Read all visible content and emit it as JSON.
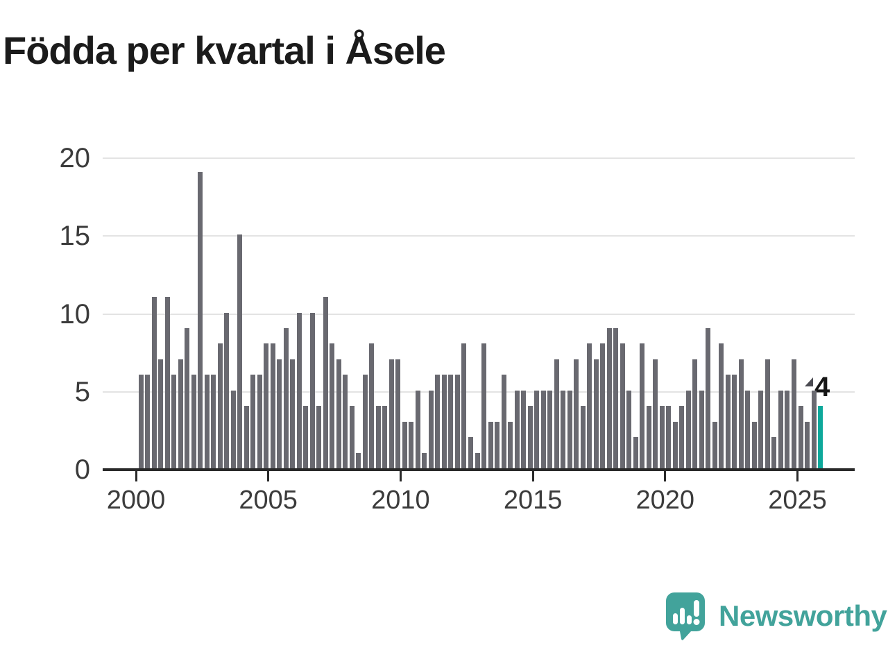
{
  "page": {
    "title": "Födda per kvartal i Åsele"
  },
  "annotation": {
    "latest_value_label": "4"
  },
  "branding": {
    "logo_text": "Newsworthy"
  },
  "colors": {
    "background": "#ffffff",
    "bar": "#696970",
    "highlight_bar": "#0da89b",
    "gridline": "#e3e3e3",
    "axis": "#2a2a2a",
    "tick_label": "#3b3b3b",
    "title_text": "#1b1b1b",
    "annotation_text": "#161616",
    "annotation_marker": "#4b4b52",
    "logo_teal": "#42a39b"
  },
  "chart_data": {
    "type": "bar",
    "title": "Födda per kvartal i Åsele",
    "x_unit": "quarter",
    "x_start": "2000-Q1",
    "x_end": "2025-Q4",
    "values": [
      6,
      6,
      11,
      7,
      11,
      6,
      7,
      9,
      6,
      19,
      6,
      6,
      8,
      10,
      5,
      15,
      4,
      6,
      6,
      8,
      8,
      7,
      9,
      7,
      10,
      4,
      10,
      4,
      11,
      8,
      7,
      6,
      4,
      1,
      6,
      8,
      4,
      4,
      7,
      7,
      3,
      3,
      5,
      1,
      5,
      6,
      6,
      6,
      6,
      8,
      2,
      1,
      8,
      3,
      3,
      6,
      3,
      5,
      5,
      4,
      5,
      5,
      5,
      7,
      5,
      5,
      7,
      4,
      8,
      7,
      8,
      9,
      9,
      8,
      5,
      2,
      8,
      4,
      7,
      4,
      4,
      3,
      4,
      5,
      7,
      5,
      9,
      3,
      8,
      6,
      6,
      7,
      5,
      3,
      5,
      7,
      2,
      5,
      5,
      7,
      4,
      3,
      5,
      4
    ],
    "xticks": [
      "2000",
      "2005",
      "2010",
      "2015",
      "2020",
      "2025"
    ],
    "yticks": [
      0,
      5,
      10,
      15,
      20
    ],
    "ylim": [
      0,
      20
    ],
    "grid": "horizontal",
    "legend": "none",
    "highlight_index": 103,
    "highlight_label": "4"
  }
}
